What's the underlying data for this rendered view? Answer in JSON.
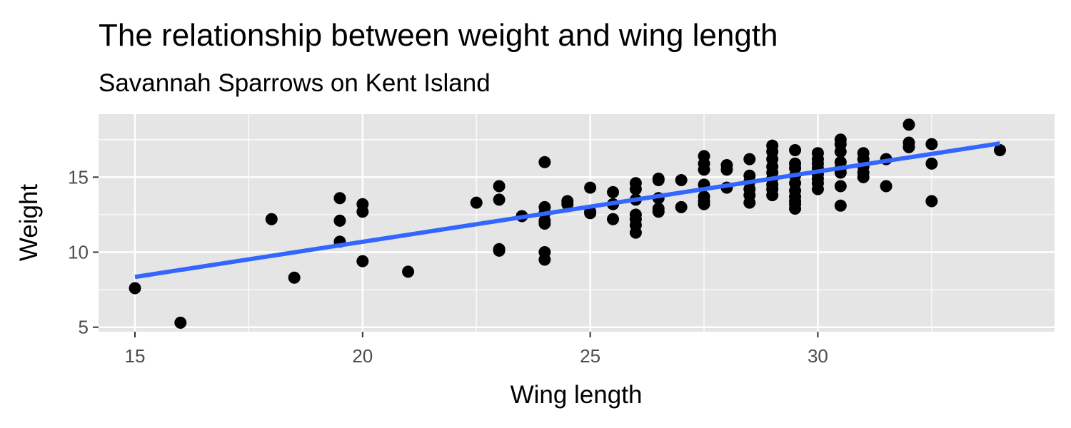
{
  "chart_data": {
    "type": "scatter",
    "title": "The relationship between weight and wing length",
    "subtitle": "Savannah Sparrows on Kent Island",
    "xlabel": "Wing length",
    "ylabel": "Weight",
    "xlim": [
      14.2,
      35.2
    ],
    "ylim": [
      4.7,
      19.2
    ],
    "x_ticks": [
      15,
      20,
      25,
      30
    ],
    "x_tick_labels": [
      "15",
      "20",
      "25",
      "30"
    ],
    "y_ticks": [
      5,
      10,
      15
    ],
    "y_tick_labels": [
      "5",
      "10",
      "15"
    ],
    "grid": true,
    "background": "#e5e5e5",
    "point_color": "#000000",
    "points": [
      {
        "x": 15,
        "y": 7.6
      },
      {
        "x": 16,
        "y": 5.3
      },
      {
        "x": 18,
        "y": 12.2
      },
      {
        "x": 18.5,
        "y": 8.3
      },
      {
        "x": 19.5,
        "y": 13.6
      },
      {
        "x": 19.5,
        "y": 12.1
      },
      {
        "x": 19.5,
        "y": 10.7
      },
      {
        "x": 20,
        "y": 13.2
      },
      {
        "x": 20,
        "y": 12.7
      },
      {
        "x": 20,
        "y": 9.4
      },
      {
        "x": 21,
        "y": 8.7
      },
      {
        "x": 22.5,
        "y": 13.3
      },
      {
        "x": 23,
        "y": 14.4
      },
      {
        "x": 23,
        "y": 13.5
      },
      {
        "x": 23,
        "y": 10.2
      },
      {
        "x": 23,
        "y": 10.1
      },
      {
        "x": 23.5,
        "y": 12.4
      },
      {
        "x": 24,
        "y": 16.0
      },
      {
        "x": 24,
        "y": 13.0
      },
      {
        "x": 24,
        "y": 12.6
      },
      {
        "x": 24,
        "y": 12.1
      },
      {
        "x": 24,
        "y": 11.9
      },
      {
        "x": 24,
        "y": 10.0
      },
      {
        "x": 24,
        "y": 9.5
      },
      {
        "x": 24.5,
        "y": 13.4
      },
      {
        "x": 24.5,
        "y": 13.2
      },
      {
        "x": 25,
        "y": 14.3
      },
      {
        "x": 25,
        "y": 12.7
      },
      {
        "x": 25,
        "y": 12.6
      },
      {
        "x": 25.5,
        "y": 14.0
      },
      {
        "x": 25.5,
        "y": 13.2
      },
      {
        "x": 25.5,
        "y": 12.2
      },
      {
        "x": 26,
        "y": 14.6
      },
      {
        "x": 26,
        "y": 14.2
      },
      {
        "x": 26,
        "y": 13.5
      },
      {
        "x": 26,
        "y": 12.5
      },
      {
        "x": 26,
        "y": 12.2
      },
      {
        "x": 26,
        "y": 11.8
      },
      {
        "x": 26,
        "y": 11.3
      },
      {
        "x": 26.5,
        "y": 14.9
      },
      {
        "x": 26.5,
        "y": 14.8
      },
      {
        "x": 26.5,
        "y": 13.6
      },
      {
        "x": 26.5,
        "y": 12.9
      },
      {
        "x": 26.5,
        "y": 12.7
      },
      {
        "x": 27,
        "y": 14.8
      },
      {
        "x": 27,
        "y": 13.0
      },
      {
        "x": 27.5,
        "y": 16.4
      },
      {
        "x": 27.5,
        "y": 15.9
      },
      {
        "x": 27.5,
        "y": 15.5
      },
      {
        "x": 27.5,
        "y": 14.5
      },
      {
        "x": 27.5,
        "y": 13.7
      },
      {
        "x": 27.5,
        "y": 13.4
      },
      {
        "x": 27.5,
        "y": 13.2
      },
      {
        "x": 28,
        "y": 15.8
      },
      {
        "x": 28,
        "y": 15.5
      },
      {
        "x": 28,
        "y": 14.3
      },
      {
        "x": 28.5,
        "y": 16.2
      },
      {
        "x": 28.5,
        "y": 15.1
      },
      {
        "x": 28.5,
        "y": 14.7
      },
      {
        "x": 28.5,
        "y": 14.2
      },
      {
        "x": 28.5,
        "y": 13.8
      },
      {
        "x": 28.5,
        "y": 13.3
      },
      {
        "x": 29,
        "y": 17.1
      },
      {
        "x": 29,
        "y": 16.7
      },
      {
        "x": 29,
        "y": 16.2
      },
      {
        "x": 29,
        "y": 15.7
      },
      {
        "x": 29,
        "y": 15.3
      },
      {
        "x": 29,
        "y": 14.9
      },
      {
        "x": 29,
        "y": 14.5
      },
      {
        "x": 29,
        "y": 14.2
      },
      {
        "x": 29,
        "y": 13.8
      },
      {
        "x": 29.5,
        "y": 16.8
      },
      {
        "x": 29.5,
        "y": 15.9
      },
      {
        "x": 29.5,
        "y": 15.6
      },
      {
        "x": 29.5,
        "y": 15.1
      },
      {
        "x": 29.5,
        "y": 14.6
      },
      {
        "x": 29.5,
        "y": 14.1
      },
      {
        "x": 29.5,
        "y": 13.7
      },
      {
        "x": 29.5,
        "y": 13.4
      },
      {
        "x": 29.5,
        "y": 13.2
      },
      {
        "x": 29.5,
        "y": 12.9
      },
      {
        "x": 30,
        "y": 16.6
      },
      {
        "x": 30,
        "y": 16.2
      },
      {
        "x": 30,
        "y": 15.9
      },
      {
        "x": 30,
        "y": 15.6
      },
      {
        "x": 30,
        "y": 15.2
      },
      {
        "x": 30,
        "y": 14.9
      },
      {
        "x": 30,
        "y": 14.6
      },
      {
        "x": 30,
        "y": 14.2
      },
      {
        "x": 30.5,
        "y": 17.5
      },
      {
        "x": 30.5,
        "y": 17.2
      },
      {
        "x": 30.5,
        "y": 16.7
      },
      {
        "x": 30.5,
        "y": 16.0
      },
      {
        "x": 30.5,
        "y": 15.6
      },
      {
        "x": 30.5,
        "y": 15.3
      },
      {
        "x": 30.5,
        "y": 14.4
      },
      {
        "x": 30.5,
        "y": 13.1
      },
      {
        "x": 31,
        "y": 16.6
      },
      {
        "x": 31,
        "y": 16.2
      },
      {
        "x": 31,
        "y": 15.7
      },
      {
        "x": 31,
        "y": 15.3
      },
      {
        "x": 31,
        "y": 15.0
      },
      {
        "x": 31.5,
        "y": 16.2
      },
      {
        "x": 31.5,
        "y": 14.4
      },
      {
        "x": 32,
        "y": 18.5
      },
      {
        "x": 32,
        "y": 17.3
      },
      {
        "x": 32,
        "y": 17.0
      },
      {
        "x": 32.5,
        "y": 17.2
      },
      {
        "x": 32.5,
        "y": 15.9
      },
      {
        "x": 32.5,
        "y": 13.4
      },
      {
        "x": 34,
        "y": 16.8
      }
    ],
    "trend_line": {
      "color": "#3366ff",
      "x": [
        15,
        34
      ],
      "y": [
        8.35,
        17.25
      ]
    }
  }
}
